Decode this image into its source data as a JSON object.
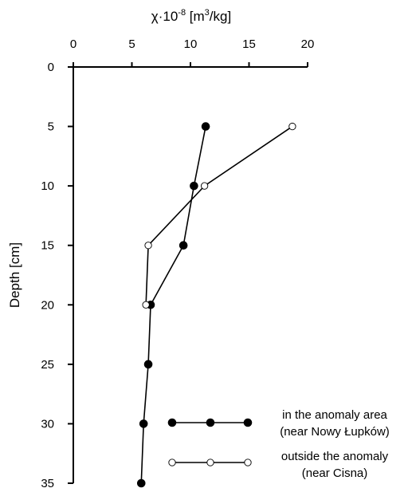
{
  "chart_data": {
    "type": "line",
    "title": "",
    "xlabel": "χ·10⁻⁸ [m³/kg]",
    "xlabel_parts": {
      "symbol": "χ·10",
      "exp": "-8",
      "unit_open": " [m",
      "unit_exp": "3",
      "unit_close": "/kg]"
    },
    "ylabel": "Depth [cm]",
    "x_axis_position": "top",
    "y_inverted": true,
    "xlim": [
      0,
      20
    ],
    "ylim": [
      0,
      35
    ],
    "xticks": [
      0,
      5,
      10,
      15,
      20
    ],
    "yticks": [
      0,
      5,
      10,
      15,
      20,
      25,
      30,
      35
    ],
    "grid": false,
    "legend_position": "bottom-right",
    "series": [
      {
        "name_line1": "in the anomaly area",
        "name_line2": "(near Nowy Łupków)",
        "marker": "filled-circle",
        "color": "#000000",
        "points": [
          {
            "x": 11.3,
            "y": 5
          },
          {
            "x": 10.3,
            "y": 10
          },
          {
            "x": 9.4,
            "y": 15
          },
          {
            "x": 6.6,
            "y": 20
          },
          {
            "x": 6.4,
            "y": 25
          },
          {
            "x": 6.0,
            "y": 30
          },
          {
            "x": 5.8,
            "y": 35
          }
        ]
      },
      {
        "name_line1": "outside the anomaly",
        "name_line2": "(near Cisna)",
        "marker": "open-circle",
        "color": "#000000",
        "points": [
          {
            "x": 18.7,
            "y": 5
          },
          {
            "x": 11.2,
            "y": 10
          },
          {
            "x": 6.4,
            "y": 15
          },
          {
            "x": 6.2,
            "y": 20
          }
        ]
      }
    ]
  }
}
